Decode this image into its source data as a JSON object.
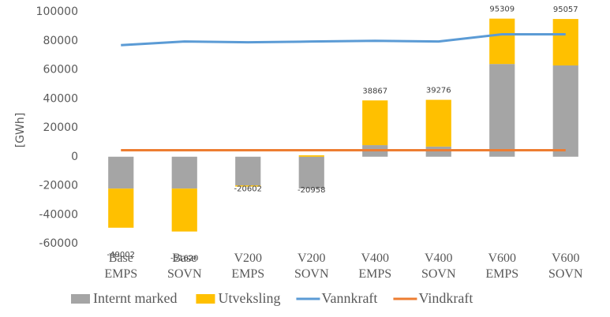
{
  "chart_data": {
    "type": "stacked-bar-line",
    "y_label": "[GWh]",
    "categories": [
      [
        "Base",
        "EMPS"
      ],
      [
        "Base",
        "SOVN"
      ],
      [
        "V200",
        "EMPS"
      ],
      [
        "V200",
        "SOVN"
      ],
      [
        "V400",
        "EMPS"
      ],
      [
        "V400",
        "SOVN"
      ],
      [
        "V600",
        "EMPS"
      ],
      [
        "V600",
        "SOVN"
      ]
    ],
    "series": [
      {
        "name": "Internt marked",
        "kind": "bar",
        "color": "#a5a5a5",
        "values": [
          -22000,
          -22000,
          -19800,
          -21958,
          8000,
          7000,
          64000,
          63000
        ]
      },
      {
        "name": "Utveksling",
        "kind": "bar",
        "color": "#ffc000",
        "values": [
          -27002,
          -29620,
          -802,
          1000,
          30867,
          32276,
          31309,
          32057
        ]
      },
      {
        "name": "Vannkraft",
        "kind": "line",
        "color": "#5b9bd5",
        "values": [
          77000,
          79500,
          79000,
          79500,
          80000,
          79500,
          84500,
          84500
        ]
      },
      {
        "name": "Vindkraft",
        "kind": "line",
        "color": "#ed7d31",
        "values": [
          4500,
          4500,
          4500,
          4500,
          4500,
          4500,
          4500,
          4500
        ]
      }
    ],
    "total_labels": [
      -49002,
      -51620,
      -20602,
      -20958,
      38867,
      39276,
      95309,
      95057
    ],
    "ylim": [
      -60000,
      100000
    ],
    "yticks": [
      -60000,
      -40000,
      -20000,
      0,
      20000,
      40000,
      60000,
      80000,
      100000
    ],
    "grid": false,
    "legend": "bottom"
  }
}
